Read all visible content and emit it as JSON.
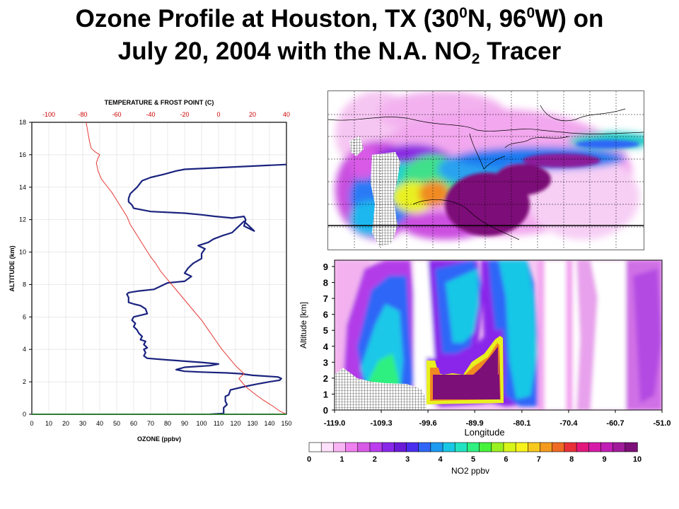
{
  "title": {
    "line1_a": "Ozone Profile at  Houston, TX (30",
    "line1_sup1": "0",
    "line1_b": "N, 96",
    "line1_sup2": "0",
    "line1_c": "W) on",
    "line2_a": "July 20, 2004 with the N.A. NO",
    "line2_sub": "2",
    "line2_b": " Tracer"
  },
  "colors": {
    "ozone_line": "#1a237e",
    "temperature_line": "#e53935",
    "frost_line": "#2e7d32",
    "top_axis_text": "#cc0000"
  },
  "chart_data": [
    {
      "type": "line",
      "title": "",
      "top_axis_label": "TEMPERATURE & FROST POINT (C)",
      "top_axis_ticks": [
        "-100",
        "-80",
        "-60",
        "-40",
        "-20",
        "0",
        "20",
        "40"
      ],
      "top_axis_range": [
        -110,
        40
      ],
      "xlabel": "OZONE (ppbv)",
      "ylabel": "ALTITUDE (km)",
      "xlim": [
        0,
        150
      ],
      "ylim": [
        0,
        18
      ],
      "x_ticks": [
        "0",
        "10",
        "20",
        "30",
        "40",
        "50",
        "60",
        "70",
        "80",
        "90",
        "100",
        "110",
        "120",
        "130",
        "140",
        "150"
      ],
      "y_ticks": [
        "0",
        "2",
        "4",
        "6",
        "8",
        "10",
        "12",
        "14",
        "16",
        "18"
      ],
      "grid": true,
      "series": [
        {
          "axis": "bottom",
          "points": [
            [
              105,
              0
            ],
            [
              113,
              0.05
            ],
            [
              113,
              0.4
            ],
            [
              115,
              0.6
            ],
            [
              114,
              0.8
            ],
            [
              114,
              1.1
            ],
            [
              116,
              1.2
            ],
            [
              117,
              1.5
            ],
            [
              125,
              1.7
            ],
            [
              132,
              1.85
            ],
            [
              140,
              2
            ],
            [
              146,
              2.1
            ],
            [
              147,
              2.2
            ],
            [
              145,
              2.3
            ],
            [
              130,
              2.4
            ],
            [
              123,
              2.5
            ],
            [
              115,
              2.55
            ],
            [
              100,
              2.6
            ],
            [
              90,
              2.65
            ],
            [
              85,
              2.75
            ],
            [
              90,
              2.9
            ],
            [
              105,
              3
            ],
            [
              110,
              3.1
            ],
            [
              100,
              3.2
            ],
            [
              80,
              3.35
            ],
            [
              68,
              3.45
            ],
            [
              66,
              3.6
            ],
            [
              67,
              3.8
            ],
            [
              66,
              4
            ],
            [
              68,
              4.1
            ],
            [
              66,
              4.3
            ],
            [
              67,
              4.5
            ],
            [
              64,
              4.6
            ],
            [
              65,
              4.8
            ],
            [
              63,
              5
            ],
            [
              62,
              5.2
            ],
            [
              60,
              5.4
            ],
            [
              61,
              5.6
            ],
            [
              59,
              5.8
            ],
            [
              60,
              6
            ],
            [
              68,
              6.2
            ],
            [
              67,
              6.5
            ],
            [
              64,
              6.7
            ],
            [
              60,
              6.8
            ],
            [
              57,
              6.9
            ],
            [
              57,
              7.2
            ],
            [
              56,
              7.4
            ],
            [
              57,
              7.5
            ],
            [
              63,
              7.6
            ],
            [
              72,
              7.7
            ],
            [
              80,
              8.1
            ],
            [
              90,
              8.2
            ],
            [
              94,
              8.5
            ],
            [
              90,
              8.7
            ],
            [
              92,
              9
            ],
            [
              95,
              9.3
            ],
            [
              100,
              9.6
            ],
            [
              100,
              9.9
            ],
            [
              102,
              10.2
            ],
            [
              98,
              10.4
            ],
            [
              104,
              10.6
            ],
            [
              107,
              10.8
            ],
            [
              112,
              11
            ],
            [
              118,
              11.2
            ],
            [
              121,
              11.5
            ],
            [
              125,
              11.9
            ],
            [
              131,
              11.3
            ],
            [
              125,
              11.6
            ],
            [
              126,
              12
            ],
            [
              125,
              12.2
            ],
            [
              118,
              12.1
            ],
            [
              108,
              12.2
            ],
            [
              100,
              12.3
            ],
            [
              90,
              12.4
            ],
            [
              70,
              12.5
            ],
            [
              60,
              12.7
            ],
            [
              59,
              12.9
            ],
            [
              57,
              13.1
            ],
            [
              57,
              13.3
            ],
            [
              58,
              13.6
            ],
            [
              62,
              14
            ],
            [
              65,
              14.4
            ],
            [
              70,
              14.6
            ],
            [
              78,
              14.8
            ],
            [
              85,
              15
            ],
            [
              90,
              15.1
            ],
            [
              150,
              15.4
            ]
          ]
        },
        {
          "axis": "top",
          "points": [
            [
              40,
              0
            ],
            [
              36,
              0.2
            ],
            [
              32,
              0.5
            ],
            [
              26,
              0.9
            ],
            [
              22,
              1.2
            ],
            [
              16,
              1.7
            ],
            [
              12,
              2.2
            ],
            [
              15,
              2.5
            ],
            [
              10,
              3
            ],
            [
              6,
              3.5
            ],
            [
              2,
              4
            ],
            [
              -2,
              4.6
            ],
            [
              -6,
              5.2
            ],
            [
              -10,
              5.8
            ],
            [
              -14,
              6.3
            ],
            [
              -18,
              6.8
            ],
            [
              -22,
              7.3
            ],
            [
              -26,
              7.8
            ],
            [
              -30,
              8.3
            ],
            [
              -34,
              8.8
            ],
            [
              -37,
              9.3
            ],
            [
              -40,
              9.7
            ],
            [
              -43,
              10.2
            ],
            [
              -46,
              10.7
            ],
            [
              -49,
              11.2
            ],
            [
              -52,
              11.7
            ],
            [
              -54,
              12.2
            ],
            [
              -57,
              12.7
            ],
            [
              -60,
              13.2
            ],
            [
              -63,
              13.7
            ],
            [
              -66,
              14.1
            ],
            [
              -69,
              14.5
            ],
            [
              -71,
              15
            ],
            [
              -72,
              15.5
            ],
            [
              -71,
              15.8
            ],
            [
              -70,
              16
            ],
            [
              -73,
              16.2
            ],
            [
              -75,
              16.4
            ],
            [
              -76,
              16.8
            ],
            [
              -77,
              17.4
            ],
            [
              -78,
              18
            ]
          ]
        },
        {
          "axis": "top",
          "points": [
            [
              -110,
              0
            ],
            [
              40,
              0
            ]
          ]
        }
      ]
    },
    {
      "type": "heatmap",
      "title": "",
      "xlabel": "Longitude",
      "ylabel": "Altitude [km]",
      "x_ticks": [
        "-119.0",
        "-109.3",
        "-99.6",
        "-89.9",
        "-80.1",
        "-70.4",
        "-60.7",
        "-51.0"
      ],
      "y_ticks": [
        "0",
        "1",
        "2",
        "3",
        "4",
        "5",
        "6",
        "7",
        "8",
        "9"
      ],
      "xlim": [
        -119.0,
        -51.0
      ],
      "ylim": [
        0,
        9.4
      ],
      "colorbar_label": "NO2 ppbv",
      "colorbar_ticks": [
        "0",
        "1",
        "2",
        "3",
        "4",
        "5",
        "6",
        "7",
        "8",
        "9",
        "10"
      ],
      "colorbar_range": [
        0,
        10
      ],
      "colorbar_colors": [
        "#ffffff",
        "#fde0fb",
        "#f9b4f5",
        "#f07ff0",
        "#d85ae6",
        "#bb3ded",
        "#8a28ea",
        "#6a1bd6",
        "#4a2ef0",
        "#2f66f7",
        "#1c9bf0",
        "#18c7e6",
        "#22e3c1",
        "#2ff080",
        "#46f23c",
        "#9af020",
        "#d8f51a",
        "#f8f21c",
        "#f7c91e",
        "#f49a1f",
        "#ef6a24",
        "#e9303a",
        "#e3187c",
        "#d61ba8",
        "#c11fb6",
        "#a01c9a",
        "#7d0f78"
      ],
      "description_values": "NO2 mixing ratio cross-section along latitude 30N"
    },
    {
      "type": "heatmap",
      "title": "",
      "map_region": "North America NO2 tracer horizontal field"
    }
  ]
}
